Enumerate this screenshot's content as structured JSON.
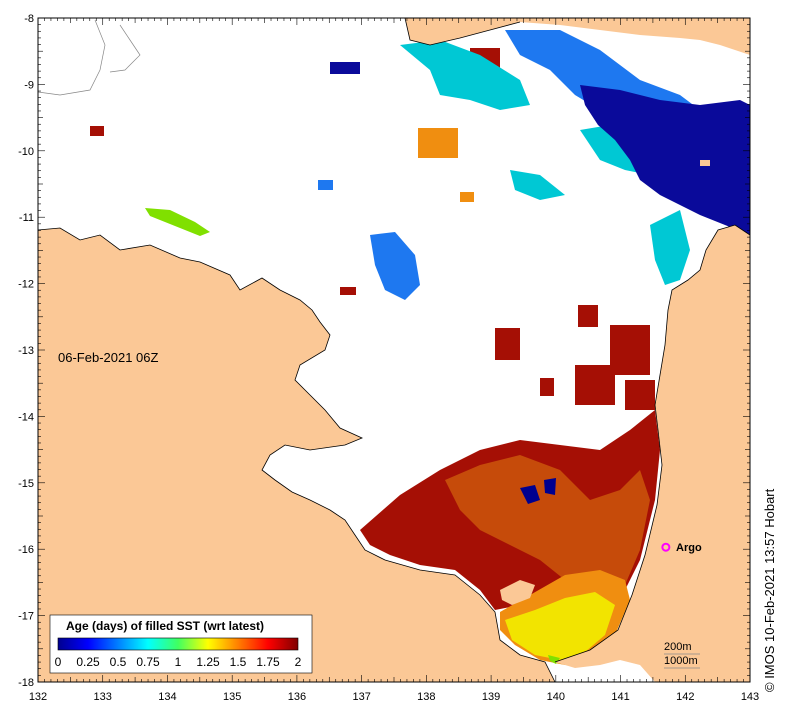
{
  "map": {
    "date_label": "06-Feb-2021 06Z",
    "credit": "© IMOS 10-Feb-2021 13:57 Hobart",
    "argo_label": "Argo",
    "contour_legend": [
      "200m",
      "1000m"
    ],
    "x_ticks": [
      "132",
      "133",
      "134",
      "135",
      "136",
      "137",
      "138",
      "139",
      "140",
      "141",
      "142",
      "143"
    ],
    "y_ticks": [
      "-8",
      "-9",
      "-10",
      "-11",
      "-12",
      "-13",
      "-14",
      "-15",
      "-16",
      "-17",
      "-18"
    ],
    "lon_range": [
      132,
      143
    ],
    "lat_range": [
      -18,
      -8
    ],
    "colorbar": {
      "title": "Age (days) of filled SST (wrt latest)",
      "ticks": [
        "0",
        "0.25",
        "0.5",
        "0.75",
        "1",
        "1.25",
        "1.5",
        "1.75",
        "2"
      ],
      "range": [
        0,
        2
      ],
      "colormap": "jet"
    },
    "argo_float": {
      "lon": 141.7,
      "lat": -15.97,
      "color": "#ff00ff"
    },
    "colors": {
      "land": "#fbc896",
      "no_data": "#ffffff",
      "age_0": "#00008f",
      "age_0_5": "#0050ff",
      "age_1": "#00d0d0",
      "age_1_25": "#80e000",
      "age_1_5": "#f0f000",
      "age_1_75": "#ff8000",
      "age_2": "#a00000"
    }
  }
}
